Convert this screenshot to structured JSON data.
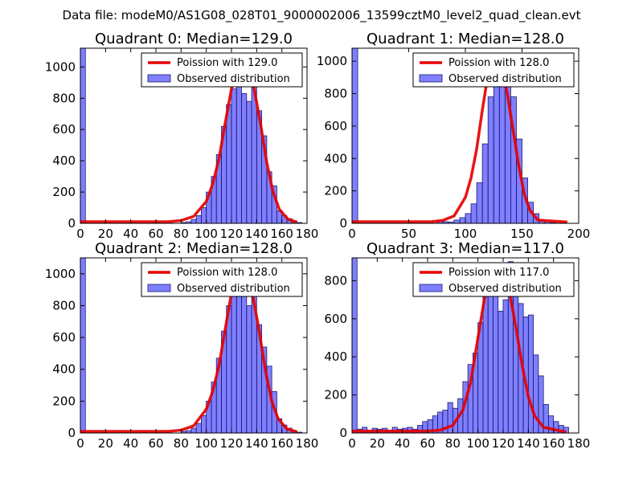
{
  "figure_title": "Data file: modeM0/AS1G08_028T01_9000002006_13599cztM0_level2_quad_clean.evt",
  "chart_data": [
    {
      "type": "bar",
      "title": "Quadrant 0: Median=129.0",
      "legend": {
        "placement": "top-right",
        "line_label": "Poission with 129.0",
        "bar_label": "Observed distribution"
      },
      "xlim": [
        0,
        180
      ],
      "ylim": [
        0,
        1120
      ],
      "xticks": [
        0,
        20,
        40,
        60,
        80,
        100,
        120,
        140,
        160,
        180
      ],
      "yticks": [
        0,
        200,
        400,
        600,
        800,
        1000
      ],
      "bins": {
        "edges": [
          0,
          4,
          8,
          12,
          16,
          20,
          24,
          28,
          32,
          36,
          40,
          44,
          48,
          52,
          56,
          60,
          64,
          68,
          72,
          76,
          80,
          84,
          88,
          92,
          96,
          100,
          104,
          108,
          112,
          116,
          120,
          124,
          128,
          132,
          136,
          140,
          144,
          148,
          152,
          156,
          160,
          164,
          168,
          172,
          176,
          180
        ],
        "counts": [
          1120,
          0,
          0,
          0,
          0,
          0,
          0,
          0,
          0,
          0,
          0,
          0,
          0,
          0,
          0,
          0,
          0,
          0,
          0,
          0,
          5,
          10,
          25,
          50,
          100,
          200,
          300,
          440,
          620,
          760,
          860,
          1000,
          830,
          780,
          940,
          720,
          560,
          330,
          240,
          80,
          50,
          30,
          10,
          5,
          0
        ]
      },
      "poisson": {
        "mean": 129.0,
        "x": [
          0,
          70,
          80,
          90,
          100,
          105,
          110,
          115,
          120,
          125,
          129,
          133,
          138,
          143,
          148,
          153,
          158,
          165,
          172
        ],
        "y": [
          10,
          10,
          18,
          45,
          140,
          250,
          410,
          640,
          860,
          1010,
          1060,
          1010,
          860,
          640,
          390,
          200,
          90,
          25,
          8
        ]
      }
    },
    {
      "type": "bar",
      "title": "Quadrant 1: Median=128.0",
      "legend": {
        "placement": "top-right",
        "line_label": "Poission with 128.0",
        "bar_label": "Observed distribution"
      },
      "xlim": [
        0,
        200
      ],
      "ylim": [
        0,
        1080
      ],
      "xticks": [
        0,
        50,
        100,
        150,
        200
      ],
      "yticks": [
        0,
        200,
        400,
        600,
        800,
        1000
      ],
      "bins": {
        "edges": [
          0,
          5,
          10,
          15,
          20,
          25,
          30,
          35,
          40,
          45,
          50,
          55,
          60,
          65,
          70,
          75,
          80,
          85,
          90,
          95,
          100,
          105,
          110,
          115,
          120,
          125,
          130,
          135,
          140,
          145,
          150,
          155,
          160,
          165,
          170,
          175,
          180,
          185,
          190
        ],
        "counts": [
          1080,
          0,
          0,
          0,
          0,
          0,
          0,
          0,
          0,
          0,
          0,
          0,
          0,
          0,
          0,
          15,
          10,
          8,
          20,
          35,
          60,
          120,
          250,
          490,
          780,
          1000,
          950,
          880,
          780,
          520,
          280,
          130,
          60,
          20,
          10,
          5,
          0,
          0
        ]
      },
      "poisson": {
        "mean": 128.0,
        "x": [
          0,
          70,
          80,
          90,
          100,
          105,
          110,
          115,
          120,
          125,
          128,
          132,
          137,
          142,
          147,
          152,
          157,
          164,
          190
        ],
        "y": [
          10,
          10,
          18,
          45,
          160,
          280,
          460,
          700,
          920,
          1030,
          1020,
          960,
          800,
          580,
          360,
          180,
          80,
          20,
          8
        ]
      }
    },
    {
      "type": "bar",
      "title": "Quadrant 2: Median=128.0",
      "legend": {
        "placement": "top-right",
        "line_label": "Poission with 128.0",
        "bar_label": "Observed distribution"
      },
      "xlim": [
        0,
        180
      ],
      "ylim": [
        0,
        1100
      ],
      "xticks": [
        0,
        20,
        40,
        60,
        80,
        100,
        120,
        140,
        160,
        180
      ],
      "yticks": [
        0,
        200,
        400,
        600,
        800,
        1000
      ],
      "bins": {
        "edges": [
          0,
          4,
          8,
          12,
          16,
          20,
          24,
          28,
          32,
          36,
          40,
          44,
          48,
          52,
          56,
          60,
          64,
          68,
          72,
          76,
          80,
          84,
          88,
          92,
          96,
          100,
          104,
          108,
          112,
          116,
          120,
          124,
          128,
          132,
          136,
          140,
          144,
          148,
          152,
          156,
          160,
          164,
          168,
          172,
          176,
          180
        ],
        "counts": [
          1100,
          0,
          0,
          0,
          0,
          0,
          0,
          0,
          0,
          0,
          0,
          0,
          0,
          0,
          0,
          0,
          0,
          0,
          0,
          0,
          10,
          15,
          30,
          60,
          110,
          200,
          320,
          470,
          640,
          800,
          920,
          1000,
          870,
          800,
          940,
          680,
          540,
          420,
          260,
          90,
          50,
          30,
          15,
          5,
          0
        ]
      },
      "poisson": {
        "mean": 128.0,
        "x": [
          0,
          70,
          80,
          90,
          100,
          105,
          110,
          115,
          120,
          124,
          128,
          132,
          137,
          142,
          147,
          152,
          157,
          164,
          172
        ],
        "y": [
          10,
          10,
          18,
          45,
          150,
          260,
          420,
          650,
          880,
          1010,
          1060,
          1010,
          860,
          640,
          390,
          200,
          90,
          25,
          8
        ]
      }
    },
    {
      "type": "bar",
      "title": "Quadrant 3: Median=117.0",
      "legend": {
        "placement": "top-right",
        "line_label": "Poission with 117.0",
        "bar_label": "Observed distribution"
      },
      "xlim": [
        0,
        180
      ],
      "ylim": [
        0,
        920
      ],
      "xticks": [
        0,
        20,
        40,
        60,
        80,
        100,
        120,
        140,
        160,
        180
      ],
      "yticks": [
        0,
        200,
        400,
        600,
        800
      ],
      "bins": {
        "edges": [
          0,
          4,
          8,
          12,
          16,
          20,
          24,
          28,
          32,
          36,
          40,
          44,
          48,
          52,
          56,
          60,
          64,
          68,
          72,
          76,
          80,
          84,
          88,
          92,
          96,
          100,
          104,
          108,
          112,
          116,
          120,
          124,
          128,
          132,
          136,
          140,
          144,
          148,
          152,
          156,
          160,
          164,
          168,
          172,
          176,
          180
        ],
        "counts": [
          920,
          20,
          30,
          15,
          25,
          20,
          25,
          15,
          30,
          20,
          25,
          30,
          20,
          40,
          60,
          70,
          90,
          110,
          120,
          160,
          130,
          180,
          270,
          360,
          420,
          580,
          720,
          860,
          850,
          640,
          700,
          900,
          770,
          680,
          610,
          620,
          410,
          300,
          150,
          90,
          60,
          40,
          30,
          0,
          0
        ]
      },
      "poisson": {
        "mean": 117.0,
        "x": [
          0,
          60,
          70,
          80,
          88,
          94,
          100,
          105,
          110,
          114,
          117,
          120,
          125,
          130,
          135,
          140,
          145,
          152,
          170
        ],
        "y": [
          10,
          10,
          15,
          40,
          120,
          260,
          500,
          700,
          830,
          880,
          880,
          850,
          740,
          560,
          360,
          190,
          90,
          30,
          5
        ]
      }
    }
  ]
}
